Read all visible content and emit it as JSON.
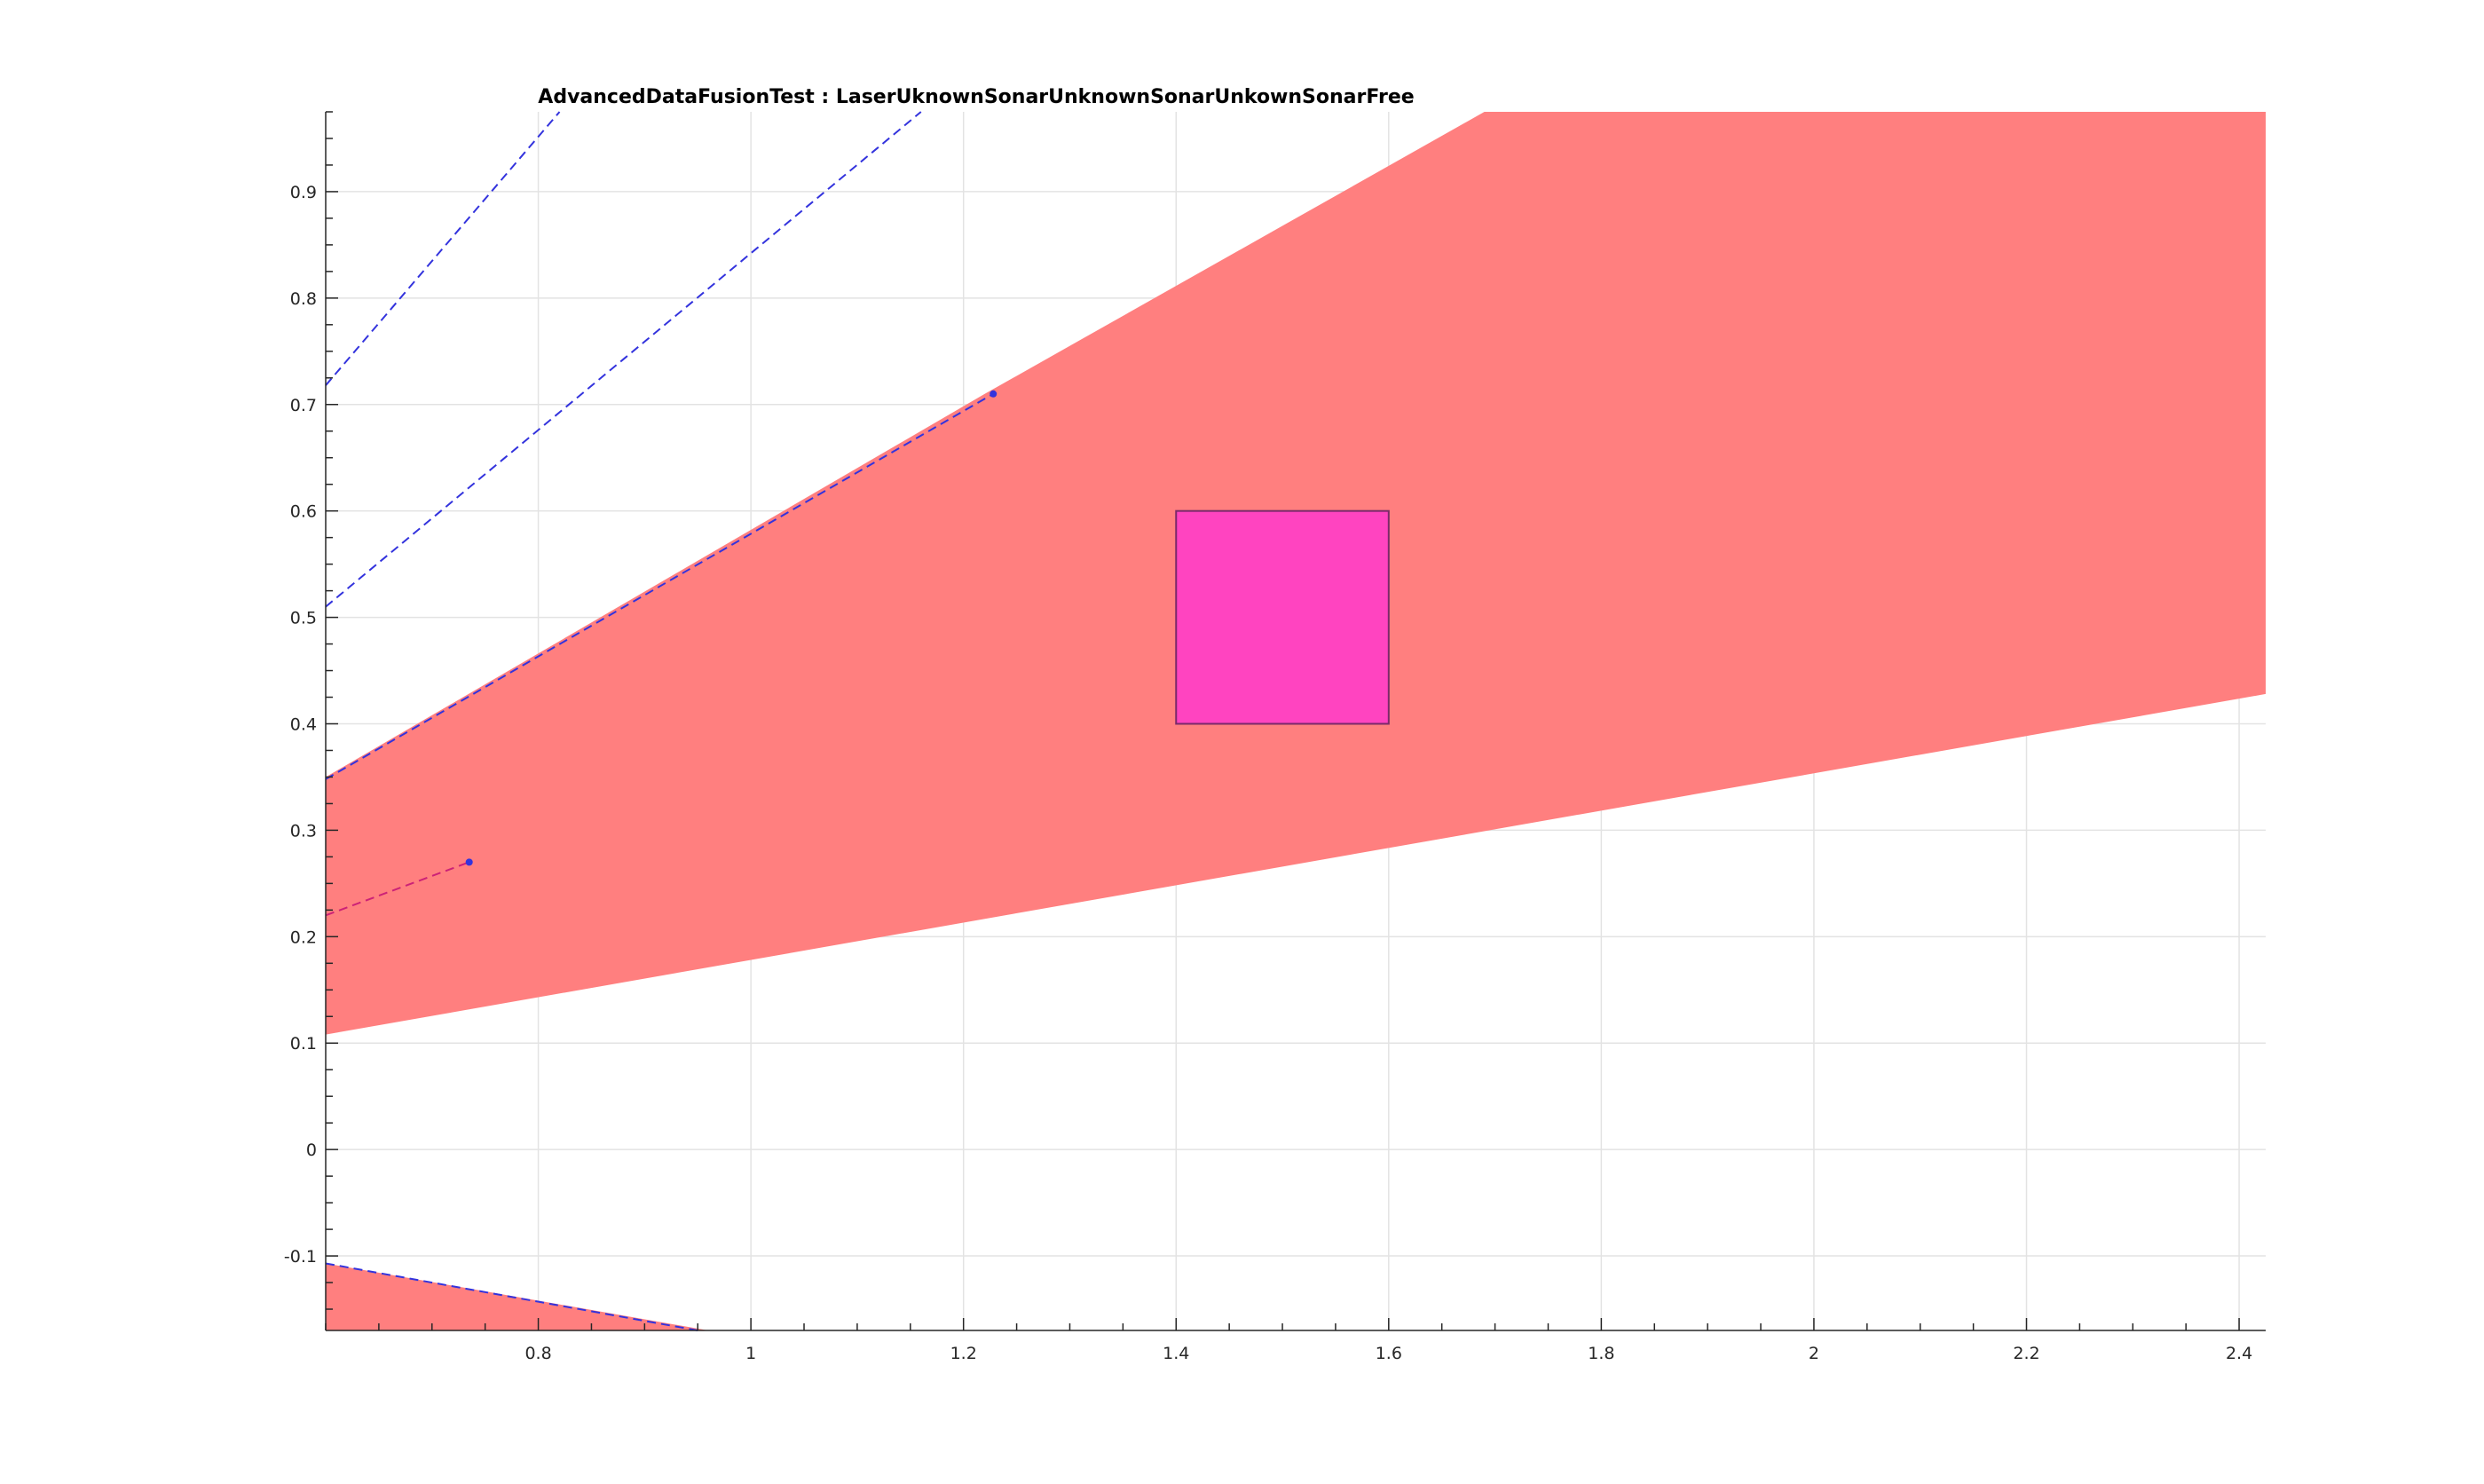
{
  "chart_data": {
    "type": "area",
    "title": "AdvancedDataFusionTest : LaserUknownSonarUnknownSonarUnkownSonarFree",
    "xlabel": "",
    "ylabel": "",
    "xlim": [
      0.6,
      2.425
    ],
    "ylim": [
      -0.17,
      0.975
    ],
    "grid": true,
    "x_ticks": [
      0.8,
      1,
      1.2,
      1.4,
      1.6,
      1.8,
      2,
      2.2,
      2.4
    ],
    "y_ticks": [
      -0.1,
      0,
      0.1,
      0.2,
      0.3,
      0.4,
      0.5,
      0.6,
      0.7,
      0.8,
      0.9
    ],
    "regions": [
      {
        "color": "#ff7f7f",
        "points": [
          [
            0.6,
            0.108
          ],
          [
            0.6,
            0.35
          ],
          [
            1.22,
            0.71
          ],
          [
            1.69,
            0.975
          ],
          [
            2.425,
            0.975
          ],
          [
            2.425,
            0.428
          ]
        ]
      },
      {
        "color": "#ff7f7f",
        "points": [
          [
            0.6,
            -0.17
          ],
          [
            0.6,
            -0.107
          ],
          [
            0.96,
            -0.17
          ]
        ]
      }
    ],
    "rectangle": {
      "x": [
        1.4,
        1.6
      ],
      "y": [
        0.4,
        0.6
      ],
      "fill": "#ff44c0",
      "edge": "#7a2a6a"
    },
    "dashed_lines": [
      {
        "color": "#3333dd",
        "points": [
          [
            0.6,
            0.718
          ],
          [
            0.82,
            0.975
          ]
        ]
      },
      {
        "color": "#3333dd",
        "points": [
          [
            0.6,
            0.51
          ],
          [
            1.16,
            0.975
          ]
        ]
      },
      {
        "color": "#3333dd",
        "points": [
          [
            0.6,
            0.348
          ],
          [
            1.228,
            0.71
          ]
        ]
      },
      {
        "color": "#3333dd",
        "points": [
          [
            0.6,
            -0.107
          ],
          [
            0.95,
            -0.17
          ]
        ]
      },
      {
        "color": "#cc2277",
        "points": [
          [
            0.6,
            0.22
          ],
          [
            0.735,
            0.27
          ]
        ]
      }
    ],
    "markers": [
      {
        "color": "#3333dd",
        "x": 1.228,
        "y": 0.71
      },
      {
        "color": "#3333dd",
        "x": 0.735,
        "y": 0.27
      }
    ]
  }
}
